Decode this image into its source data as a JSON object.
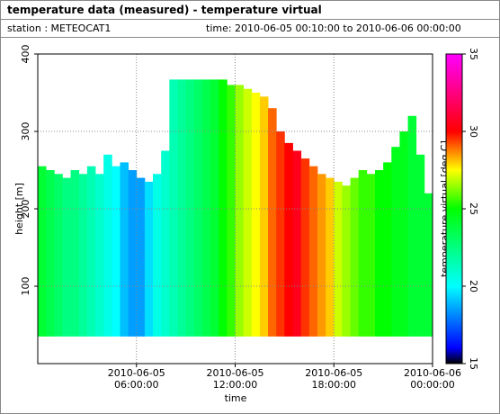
{
  "chart_data": {
    "type": "time-height",
    "title": "temperature data (measured) - temperature virtual",
    "station": "station : METEOCAT1",
    "period": "time: 2010-06-05 00:10:00 to 2010-06-06 00:00:00",
    "xlabel": "time",
    "ylabel": "height [m]",
    "xlim": [
      0,
      24
    ],
    "xticks": [
      {
        "value": 6,
        "label": "2010-06-05 06:00:00"
      },
      {
        "value": 12,
        "label": "2010-06-05 12:00:00"
      },
      {
        "value": 18,
        "label": "2010-06-05 18:00:00"
      },
      {
        "value": 24,
        "label": "2010-06-06 00:00:00"
      }
    ],
    "ylim": [
      0,
      400
    ],
    "yticks": [
      100,
      200,
      300,
      400
    ],
    "grid": true,
    "column_width": 0.5,
    "base": 35,
    "x": [
      0,
      0.5,
      1,
      1.5,
      2,
      2.5,
      3,
      3.5,
      4,
      4.5,
      5,
      5.5,
      6,
      6.5,
      7,
      7.5,
      8,
      8.5,
      9,
      9.5,
      10,
      10.5,
      11,
      11.5,
      12,
      12.5,
      13,
      13.5,
      14,
      14.5,
      15,
      15.5,
      16,
      16.5,
      17,
      17.5,
      18,
      18.5,
      19,
      19.5,
      20,
      20.5,
      21,
      21.5,
      22,
      22.5,
      23,
      23.5
    ],
    "top": [
      255,
      250,
      245,
      240,
      250,
      245,
      255,
      245,
      270,
      255,
      260,
      250,
      240,
      235,
      245,
      275,
      367,
      367,
      367,
      367,
      367,
      367,
      367,
      360,
      360,
      355,
      350,
      345,
      330,
      300,
      285,
      275,
      265,
      255,
      245,
      240,
      235,
      230,
      240,
      250,
      245,
      250,
      260,
      280,
      300,
      320,
      270,
      220
    ],
    "temperature": [
      24,
      23.5,
      23,
      22.5,
      22.5,
      22,
      21.5,
      21,
      20.5,
      20,
      19,
      18.5,
      18.5,
      19.5,
      20.5,
      21,
      21.5,
      22,
      22.5,
      23,
      23.5,
      24,
      25,
      25.5,
      26.5,
      27,
      27.5,
      28,
      29,
      29.5,
      30,
      30.5,
      29.5,
      29,
      28.5,
      28,
      27,
      26.5,
      26,
      25.5,
      25.5,
      25,
      25,
      24.5,
      24.5,
      24,
      24,
      24
    ],
    "colorscale": [
      [
        15,
        "#000000"
      ],
      [
        16,
        "#0000ff"
      ],
      [
        20,
        "#00ffff"
      ],
      [
        25,
        "#00ff00"
      ],
      [
        27.5,
        "#ffff00"
      ],
      [
        30,
        "#ff0000"
      ],
      [
        35,
        "#ff00ff"
      ]
    ],
    "colorbar": {
      "label": "temperature virtual [deg C]",
      "lim": [
        15,
        35
      ],
      "ticks": [
        15,
        20,
        25,
        30,
        35
      ]
    }
  }
}
